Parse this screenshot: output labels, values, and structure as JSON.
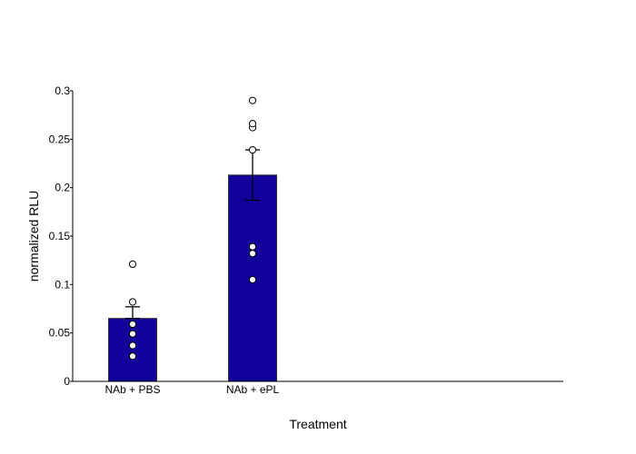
{
  "chart_data": {
    "type": "bar",
    "title": "",
    "xlabel": "Treatment",
    "ylabel": "normalized RLU",
    "ylim": [
      0,
      0.3
    ],
    "y_ticks": [
      0,
      0.05,
      0.1,
      0.15,
      0.2,
      0.25,
      0.3
    ],
    "y_tick_labels": [
      "0",
      "0.05",
      "0.1",
      "0.15",
      "0.2",
      "0.25",
      "0.3"
    ],
    "categories": [
      "NAb + PBS",
      "NAb + ePL"
    ],
    "values": [
      0.065,
      0.213
    ],
    "error_upper": [
      0.077,
      0.239
    ],
    "error_lower": [
      0.065,
      0.187
    ],
    "points": [
      [
        0.026,
        0.037,
        0.049,
        0.059,
        0.082,
        0.121
      ],
      [
        0.105,
        0.132,
        0.139,
        0.239,
        0.262,
        0.266,
        0.29
      ]
    ],
    "bar_color": "#11009a",
    "point_fill": "#ffffff",
    "grid": false,
    "legend": "none"
  }
}
